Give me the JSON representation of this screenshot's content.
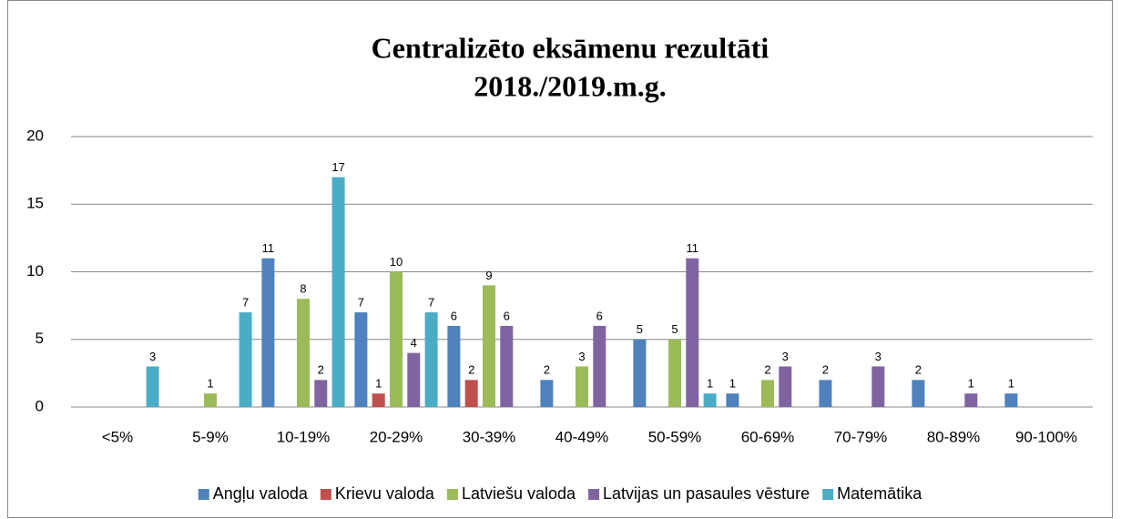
{
  "chart_data": {
    "type": "bar",
    "title": [
      "Centralizēto eksāmenu rezultāti",
      "2018./2019.m.g."
    ],
    "categories": [
      "<5%",
      "5-9%",
      "10-19%",
      "20-29%",
      "30-39%",
      "40-49%",
      "50-59%",
      "60-69%",
      "70-79%",
      "80-89%",
      "90-100%"
    ],
    "series": [
      {
        "name": "Angļu valoda",
        "color": "#4f81bd",
        "values": [
          null,
          null,
          11,
          7,
          6,
          2,
          5,
          1,
          2,
          2,
          1
        ]
      },
      {
        "name": "Krievu valoda",
        "color": "#c0504d",
        "values": [
          null,
          null,
          null,
          1,
          2,
          null,
          null,
          null,
          null,
          null,
          null
        ]
      },
      {
        "name": "Latviešu valoda",
        "color": "#9bbb59",
        "values": [
          null,
          1,
          8,
          10,
          9,
          3,
          5,
          2,
          null,
          null,
          null
        ]
      },
      {
        "name": "Latvijas un pasaules vēsture",
        "color": "#8064a2",
        "values": [
          null,
          null,
          2,
          4,
          6,
          6,
          11,
          3,
          3,
          1,
          null
        ]
      },
      {
        "name": "Matemātika",
        "color": "#4bacc6",
        "values": [
          3,
          7,
          17,
          7,
          null,
          null,
          1,
          null,
          null,
          null,
          null
        ]
      }
    ],
    "ylim": [
      0,
      20
    ],
    "yticks": [
      0,
      5,
      10,
      15,
      20
    ],
    "grid": true,
    "legend": "bottom"
  }
}
